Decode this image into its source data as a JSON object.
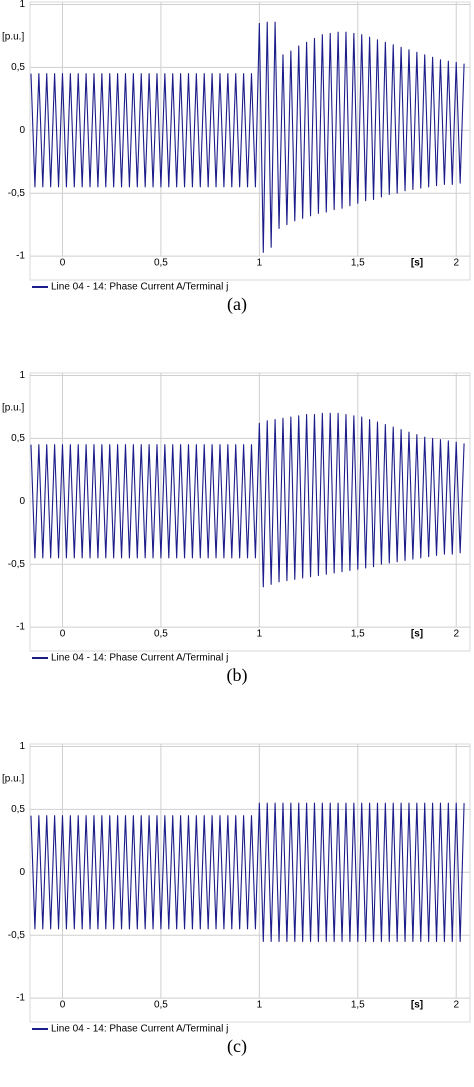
{
  "chart_data": [
    {
      "type": "line",
      "caption": "(a)",
      "y_label": "[p.u.]",
      "x_label": "[s]",
      "xlim": [
        -0.165,
        2.07
      ],
      "ylim": [
        -1.19,
        1.02
      ],
      "xticks": [
        0,
        {
          "value": 0.5,
          "label": "0,5"
        },
        1,
        {
          "value": 1.5,
          "label": "1,5"
        },
        2
      ],
      "yticks": [
        -1,
        {
          "value": -0.5,
          "label": "-0,5"
        },
        0,
        {
          "value": 0.5,
          "label": "0,5"
        },
        1
      ],
      "grid": true,
      "x": [
        -0.16,
        -0.14,
        -0.12,
        -0.1,
        -0.08,
        -0.06,
        -0.04,
        -0.02,
        0,
        0.02,
        0.04,
        0.06,
        0.08,
        0.1,
        0.12,
        0.14,
        0.16,
        0.18,
        0.2,
        0.22,
        0.24,
        0.26,
        0.28,
        0.3,
        0.32,
        0.34,
        0.36,
        0.38,
        0.4,
        0.42,
        0.44,
        0.46,
        0.48,
        0.5,
        0.52,
        0.54,
        0.56,
        0.58,
        0.6,
        0.62,
        0.64,
        0.66,
        0.68,
        0.7,
        0.72,
        0.74,
        0.76,
        0.78,
        0.8,
        0.82,
        0.84,
        0.86,
        0.88,
        0.9,
        0.92,
        0.94,
        0.96,
        0.98,
        1,
        1.02,
        1.04,
        1.06,
        1.08,
        1.1,
        1.12,
        1.14,
        1.16,
        1.18,
        1.2,
        1.22,
        1.24,
        1.26,
        1.28,
        1.3,
        1.32,
        1.34,
        1.36,
        1.38,
        1.4,
        1.42,
        1.44,
        1.46,
        1.48,
        1.5,
        1.52,
        1.54,
        1.56,
        1.58,
        1.6,
        1.62,
        1.64,
        1.66,
        1.68,
        1.7,
        1.72,
        1.74,
        1.76,
        1.78,
        1.8,
        1.82,
        1.84,
        1.86,
        1.88,
        1.9,
        1.92,
        1.94,
        1.96,
        1.98,
        2,
        2.02,
        2.04
      ],
      "series": [
        {
          "name": "Line 04 - 14: Phase Current A/Terminal j",
          "color": "#1c1c8a",
          "values": [
            0.45,
            -0.45,
            0.45,
            -0.45,
            0.45,
            -0.45,
            0.45,
            -0.45,
            0.45,
            -0.45,
            0.45,
            -0.45,
            0.45,
            -0.45,
            0.45,
            -0.45,
            0.45,
            -0.45,
            0.45,
            -0.45,
            0.45,
            -0.45,
            0.45,
            -0.45,
            0.45,
            -0.45,
            0.45,
            -0.45,
            0.45,
            -0.45,
            0.45,
            -0.45,
            0.45,
            -0.45,
            0.45,
            -0.45,
            0.45,
            -0.45,
            0.45,
            -0.45,
            0.45,
            -0.45,
            0.45,
            -0.45,
            0.45,
            -0.45,
            0.45,
            -0.45,
            0.45,
            -0.45,
            0.45,
            -0.45,
            0.45,
            -0.45,
            0.45,
            -0.45,
            0.45,
            -0.45,
            0.85,
            -0.97,
            0.86,
            -0.93,
            0.86,
            -0.78,
            0.6,
            -0.75,
            0.63,
            -0.72,
            0.67,
            -0.7,
            0.7,
            -0.68,
            0.73,
            -0.66,
            0.76,
            -0.65,
            0.77,
            -0.63,
            0.78,
            -0.62,
            0.78,
            -0.6,
            0.77,
            -0.58,
            0.76,
            -0.56,
            0.74,
            -0.55,
            0.72,
            -0.53,
            0.7,
            -0.51,
            0.68,
            -0.5,
            0.66,
            -0.48,
            0.64,
            -0.47,
            0.62,
            -0.46,
            0.6,
            -0.45,
            0.58,
            -0.44,
            0.56,
            -0.43,
            0.55,
            -0.43,
            0.54,
            -0.42,
            0.53
          ]
        }
      ]
    },
    {
      "type": "line",
      "caption": "(b)",
      "y_label": "[p.u.]",
      "x_label": "[s]",
      "xlim": [
        -0.165,
        2.07
      ],
      "ylim": [
        -1.19,
        1.02
      ],
      "xticks": [
        0,
        {
          "value": 0.5,
          "label": "0,5"
        },
        1,
        {
          "value": 1.5,
          "label": "1,5"
        },
        2
      ],
      "yticks": [
        -1,
        {
          "value": -0.5,
          "label": "-0,5"
        },
        0,
        {
          "value": 0.5,
          "label": "0,5"
        },
        1
      ],
      "grid": true,
      "x": [
        -0.16,
        -0.14,
        -0.12,
        -0.1,
        -0.08,
        -0.06,
        -0.04,
        -0.02,
        0,
        0.02,
        0.04,
        0.06,
        0.08,
        0.1,
        0.12,
        0.14,
        0.16,
        0.18,
        0.2,
        0.22,
        0.24,
        0.26,
        0.28,
        0.3,
        0.32,
        0.34,
        0.36,
        0.38,
        0.4,
        0.42,
        0.44,
        0.46,
        0.48,
        0.5,
        0.52,
        0.54,
        0.56,
        0.58,
        0.6,
        0.62,
        0.64,
        0.66,
        0.68,
        0.7,
        0.72,
        0.74,
        0.76,
        0.78,
        0.8,
        0.82,
        0.84,
        0.86,
        0.88,
        0.9,
        0.92,
        0.94,
        0.96,
        0.98,
        1,
        1.02,
        1.04,
        1.06,
        1.08,
        1.1,
        1.12,
        1.14,
        1.16,
        1.18,
        1.2,
        1.22,
        1.24,
        1.26,
        1.28,
        1.3,
        1.32,
        1.34,
        1.36,
        1.38,
        1.4,
        1.42,
        1.44,
        1.46,
        1.48,
        1.5,
        1.52,
        1.54,
        1.56,
        1.58,
        1.6,
        1.62,
        1.64,
        1.66,
        1.68,
        1.7,
        1.72,
        1.74,
        1.76,
        1.78,
        1.8,
        1.82,
        1.84,
        1.86,
        1.88,
        1.9,
        1.92,
        1.94,
        1.96,
        1.98,
        2,
        2.02,
        2.04
      ],
      "series": [
        {
          "name": "Line 04 - 14: Phase Current A/Terminal j",
          "color": "#1c1c8a",
          "values": [
            0.45,
            -0.45,
            0.45,
            -0.45,
            0.45,
            -0.45,
            0.45,
            -0.45,
            0.45,
            -0.45,
            0.45,
            -0.45,
            0.45,
            -0.45,
            0.45,
            -0.45,
            0.45,
            -0.45,
            0.45,
            -0.45,
            0.45,
            -0.45,
            0.45,
            -0.45,
            0.45,
            -0.45,
            0.45,
            -0.45,
            0.45,
            -0.45,
            0.45,
            -0.45,
            0.45,
            -0.45,
            0.45,
            -0.45,
            0.45,
            -0.45,
            0.45,
            -0.45,
            0.45,
            -0.45,
            0.45,
            -0.45,
            0.45,
            -0.45,
            0.45,
            -0.45,
            0.45,
            -0.45,
            0.45,
            -0.45,
            0.45,
            -0.45,
            0.45,
            -0.45,
            0.45,
            -0.45,
            0.62,
            -0.68,
            0.64,
            -0.66,
            0.65,
            -0.64,
            0.66,
            -0.63,
            0.67,
            -0.62,
            0.68,
            -0.61,
            0.69,
            -0.6,
            0.69,
            -0.59,
            0.7,
            -0.58,
            0.7,
            -0.57,
            0.7,
            -0.56,
            0.69,
            -0.55,
            0.68,
            -0.54,
            0.67,
            -0.53,
            0.65,
            -0.52,
            0.63,
            -0.5,
            0.61,
            -0.49,
            0.59,
            -0.48,
            0.57,
            -0.47,
            0.55,
            -0.46,
            0.53,
            -0.45,
            0.51,
            -0.44,
            0.5,
            -0.43,
            0.49,
            -0.42,
            0.48,
            -0.42,
            0.47,
            -0.41,
            0.46
          ]
        }
      ]
    },
    {
      "type": "line",
      "caption": "(c)",
      "y_label": "[p.u.]",
      "x_label": "[s]",
      "xlim": [
        -0.165,
        2.07
      ],
      "ylim": [
        -1.19,
        1.02
      ],
      "xticks": [
        0,
        {
          "value": 0.5,
          "label": "0,5"
        },
        1,
        {
          "value": 1.5,
          "label": "1,5"
        },
        2
      ],
      "yticks": [
        -1,
        {
          "value": -0.5,
          "label": "-0,5"
        },
        0,
        {
          "value": 0.5,
          "label": "0,5"
        },
        1
      ],
      "grid": true,
      "x": [
        -0.16,
        -0.14,
        -0.12,
        -0.1,
        -0.08,
        -0.06,
        -0.04,
        -0.02,
        0,
        0.02,
        0.04,
        0.06,
        0.08,
        0.1,
        0.12,
        0.14,
        0.16,
        0.18,
        0.2,
        0.22,
        0.24,
        0.26,
        0.28,
        0.3,
        0.32,
        0.34,
        0.36,
        0.38,
        0.4,
        0.42,
        0.44,
        0.46,
        0.48,
        0.5,
        0.52,
        0.54,
        0.56,
        0.58,
        0.6,
        0.62,
        0.64,
        0.66,
        0.68,
        0.7,
        0.72,
        0.74,
        0.76,
        0.78,
        0.8,
        0.82,
        0.84,
        0.86,
        0.88,
        0.9,
        0.92,
        0.94,
        0.96,
        0.98,
        1,
        1.02,
        1.04,
        1.06,
        1.08,
        1.1,
        1.12,
        1.14,
        1.16,
        1.18,
        1.2,
        1.22,
        1.24,
        1.26,
        1.28,
        1.3,
        1.32,
        1.34,
        1.36,
        1.38,
        1.4,
        1.42,
        1.44,
        1.46,
        1.48,
        1.5,
        1.52,
        1.54,
        1.56,
        1.58,
        1.6,
        1.62,
        1.64,
        1.66,
        1.68,
        1.7,
        1.72,
        1.74,
        1.76,
        1.78,
        1.8,
        1.82,
        1.84,
        1.86,
        1.88,
        1.9,
        1.92,
        1.94,
        1.96,
        1.98,
        2,
        2.02,
        2.04
      ],
      "series": [
        {
          "name": "Line 04 - 14: Phase Current A/Terminal j",
          "color": "#1c1c8a",
          "values": [
            0.45,
            -0.45,
            0.45,
            -0.45,
            0.45,
            -0.45,
            0.45,
            -0.45,
            0.45,
            -0.45,
            0.45,
            -0.45,
            0.45,
            -0.45,
            0.45,
            -0.45,
            0.45,
            -0.45,
            0.45,
            -0.45,
            0.45,
            -0.45,
            0.45,
            -0.45,
            0.45,
            -0.45,
            0.45,
            -0.45,
            0.45,
            -0.45,
            0.45,
            -0.45,
            0.45,
            -0.45,
            0.45,
            -0.45,
            0.45,
            -0.45,
            0.45,
            -0.45,
            0.45,
            -0.45,
            0.45,
            -0.45,
            0.45,
            -0.45,
            0.45,
            -0.45,
            0.45,
            -0.45,
            0.45,
            -0.45,
            0.45,
            -0.45,
            0.45,
            -0.45,
            0.45,
            -0.45,
            0.55,
            -0.55,
            0.55,
            -0.55,
            0.55,
            -0.55,
            0.55,
            -0.55,
            0.55,
            -0.55,
            0.55,
            -0.55,
            0.55,
            -0.55,
            0.55,
            -0.55,
            0.55,
            -0.55,
            0.55,
            -0.55,
            0.55,
            -0.55,
            0.55,
            -0.55,
            0.55,
            -0.55,
            0.55,
            -0.55,
            0.55,
            -0.55,
            0.55,
            -0.55,
            0.55,
            -0.55,
            0.55,
            -0.55,
            0.55,
            -0.55,
            0.55,
            -0.55,
            0.55,
            -0.55,
            0.55,
            -0.55,
            0.55,
            -0.55,
            0.55,
            -0.55,
            0.55,
            -0.55,
            0.55,
            -0.55,
            0.55
          ]
        }
      ]
    }
  ]
}
